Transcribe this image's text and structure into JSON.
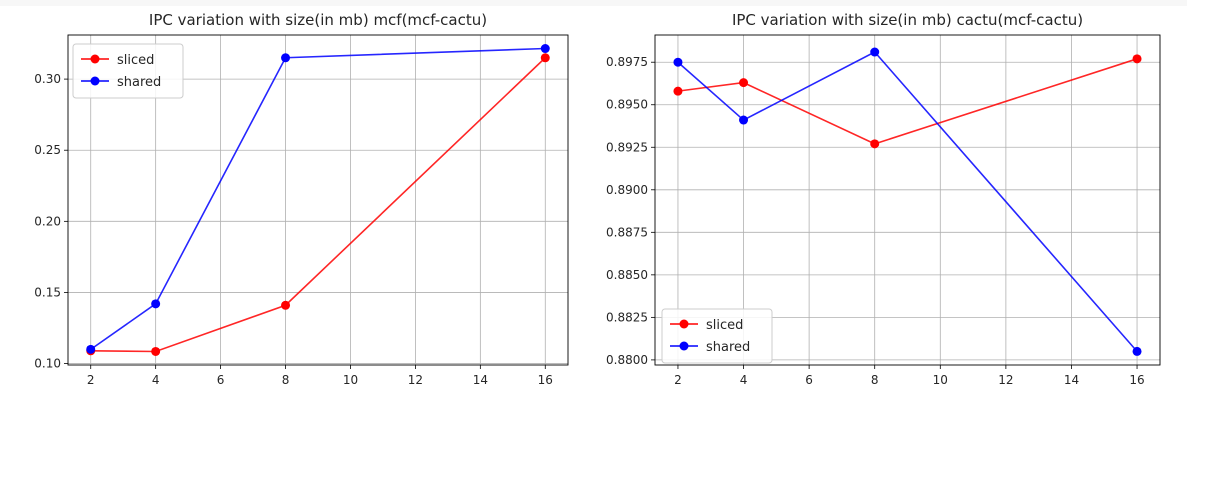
{
  "chart_data": [
    {
      "type": "line",
      "title": "IPC variation with size(in mb) mcf(mcf-cactu)",
      "xlabel": "",
      "ylabel": "",
      "x": [
        2,
        4,
        8,
        16
      ],
      "xticks": [
        2,
        4,
        6,
        8,
        10,
        12,
        14,
        16
      ],
      "xtick_labels": [
        "2",
        "4",
        "6",
        "8",
        "10",
        "12",
        "14",
        "16"
      ],
      "yticks": [
        0.1,
        0.15,
        0.2,
        0.25,
        0.3
      ],
      "ytick_labels": [
        "0.10",
        "0.15",
        "0.20",
        "0.25",
        "0.30"
      ],
      "xlim": [
        1.3,
        16.7
      ],
      "ylim": [
        0.099,
        0.331
      ],
      "grid": true,
      "legend_position": "upper left",
      "series": [
        {
          "name": "sliced",
          "color": "#ff0000",
          "values": [
            0.109,
            0.1085,
            0.141,
            0.315
          ]
        },
        {
          "name": "shared",
          "color": "#0000ff",
          "values": [
            0.11,
            0.142,
            0.315,
            0.3215
          ]
        }
      ]
    },
    {
      "type": "line",
      "title": "IPC variation with size(in mb) cactu(mcf-cactu)",
      "xlabel": "",
      "ylabel": "",
      "x": [
        2,
        4,
        8,
        16
      ],
      "xticks": [
        2,
        4,
        6,
        8,
        10,
        12,
        14,
        16
      ],
      "xtick_labels": [
        "2",
        "4",
        "6",
        "8",
        "10",
        "12",
        "14",
        "16"
      ],
      "yticks": [
        0.88,
        0.8825,
        0.885,
        0.8875,
        0.89,
        0.8925,
        0.895,
        0.8975
      ],
      "ytick_labels": [
        "0.8800",
        "0.8825",
        "0.8850",
        "0.8875",
        "0.8900",
        "0.8925",
        "0.8950",
        "0.8975"
      ],
      "xlim": [
        1.3,
        16.7
      ],
      "ylim": [
        0.8797,
        0.8991
      ],
      "grid": true,
      "legend_position": "lower left",
      "series": [
        {
          "name": "sliced",
          "color": "#ff0000",
          "values": [
            0.8958,
            0.8963,
            0.8927,
            0.8977
          ]
        },
        {
          "name": "shared",
          "color": "#0000ff",
          "values": [
            0.8975,
            0.8941,
            0.8981,
            0.8805
          ]
        }
      ]
    }
  ]
}
